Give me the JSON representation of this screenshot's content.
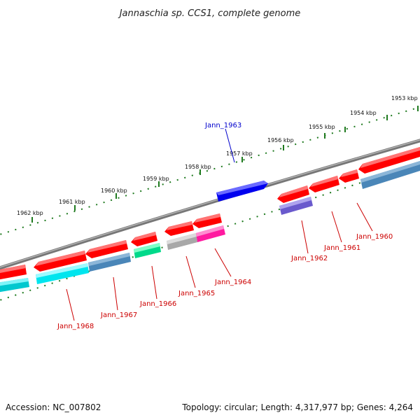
{
  "title": "Jannaschia sp. CCS1, complete genome",
  "footer": {
    "accession": "Accession: NC_007802",
    "topology": "Topology: circular; Length: 4,317,977 bp; Genes: 4,264"
  },
  "ticks": [
    "1953 kbp",
    "1954 kbp",
    "1955 kbp",
    "1956 kbp",
    "1957 kbp",
    "1958 kbp",
    "1959 kbp",
    "1960 kbp",
    "1961 kbp",
    "1962 kbp"
  ],
  "genes": {
    "jann_1963": "Jann_1963",
    "jann_1960": "Jann_1960",
    "jann_1961": "Jann_1961",
    "jann_1962": "Jann_1962",
    "jann_1964": "Jann_1964",
    "jann_1965": "Jann_1965",
    "jann_1966": "Jann_1966",
    "jann_1967": "Jann_1967",
    "jann_1968": "Jann_1968"
  },
  "colors": {
    "backbone": "#8c8c8c",
    "tick": "#1f7a1f",
    "gene_red": "#ff0000",
    "gene_blue": "#0000ee",
    "gene_cyan": "#00e5ee",
    "gene_steel": "#4a86b8",
    "gene_green": "#00d98a",
    "gene_gray": "#b0b0b0",
    "gene_magenta": "#ff1aa0",
    "gene_purple": "#6a5acd",
    "label_red": "#cc0000",
    "label_blue": "#0000cc"
  }
}
